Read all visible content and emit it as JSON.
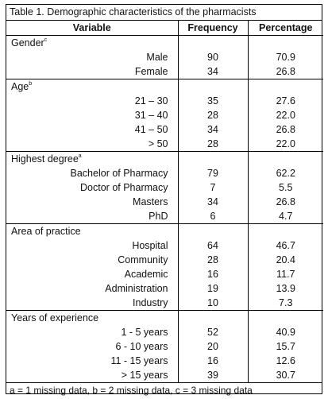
{
  "caption": "Table 1. Demographic characteristics of the pharmacists",
  "headers": {
    "variable": "Variable",
    "frequency": "Frequency",
    "percentage": "Percentage"
  },
  "sections": [
    {
      "title": "Gender",
      "marker": "c",
      "rows": [
        {
          "label": "Male",
          "frequency": "90",
          "percentage": "70.9"
        },
        {
          "label": "Female",
          "frequency": "34",
          "percentage": "26.8"
        }
      ]
    },
    {
      "title": "Age",
      "marker": "b",
      "rows": [
        {
          "label": "21 – 30",
          "frequency": "35",
          "percentage": "27.6"
        },
        {
          "label": "31 – 40",
          "frequency": "28",
          "percentage": "22.0"
        },
        {
          "label": "41 – 50",
          "frequency": "34",
          "percentage": "26.8"
        },
        {
          "label": "> 50",
          "frequency": "28",
          "percentage": "22.0"
        }
      ]
    },
    {
      "title": "Highest degree",
      "marker": "a",
      "rows": [
        {
          "label": "Bachelor of  Pharmacy",
          "frequency": "79",
          "percentage": "62.2"
        },
        {
          "label": "Doctor of Pharmacy",
          "frequency": "7",
          "percentage": "5.5"
        },
        {
          "label": "Masters",
          "frequency": "34",
          "percentage": "26.8"
        },
        {
          "label": "PhD",
          "frequency": "6",
          "percentage": "4.7"
        }
      ]
    },
    {
      "title": "Area of practice",
      "marker": "",
      "rows": [
        {
          "label": "Hospital",
          "frequency": "64",
          "percentage": "46.7"
        },
        {
          "label": "Community",
          "frequency": "28",
          "percentage": "20.4"
        },
        {
          "label": "Academic",
          "frequency": "16",
          "percentage": "11.7"
        },
        {
          "label": "Administration",
          "frequency": "19",
          "percentage": "13.9"
        },
        {
          "label": "Industry",
          "frequency": "10",
          "percentage": "7.3"
        }
      ]
    },
    {
      "title": "Years of experience",
      "marker": "",
      "rows": [
        {
          "label": "1 - 5 years",
          "frequency": "52",
          "percentage": "40.9"
        },
        {
          "label": "6 - 10 years",
          "frequency": "20",
          "percentage": "15.7"
        },
        {
          "label": "11 - 15 years",
          "frequency": "16",
          "percentage": "12.6"
        },
        {
          "label": "> 15 years",
          "frequency": "39",
          "percentage": "30.7"
        }
      ]
    }
  ],
  "footnote": "a = 1 missing data, b = 2 missing data, c = 3 missing data"
}
